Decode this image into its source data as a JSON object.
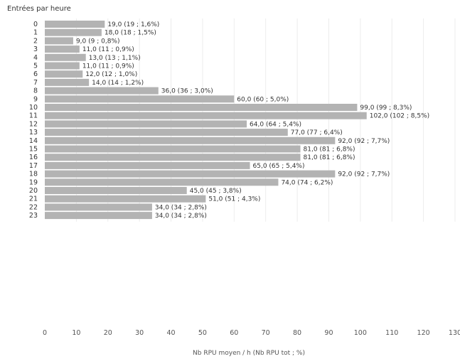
{
  "chart_data": {
    "type": "bar",
    "orientation": "horizontal",
    "title": "Entrées par heure",
    "xlabel": "Nb RPU moyen / h (Nb RPU tot ; %)",
    "ylabel": "",
    "xlim": [
      0,
      130
    ],
    "x_ticks": [
      "0",
      "10",
      "20",
      "30",
      "40",
      "50",
      "60",
      "70",
      "80",
      "90",
      "100",
      "110",
      "120",
      "130"
    ],
    "grid": "vertical",
    "bar_color": "#b3b3b3",
    "categories": [
      "0",
      "1",
      "2",
      "3",
      "4",
      "5",
      "6",
      "7",
      "8",
      "9",
      "10",
      "11",
      "12",
      "13",
      "14",
      "15",
      "16",
      "17",
      "18",
      "19",
      "20",
      "21",
      "22",
      "23"
    ],
    "values": [
      19,
      18,
      9,
      11,
      13,
      11,
      12,
      14,
      36,
      60,
      99,
      102,
      64,
      77,
      92,
      81,
      81,
      65,
      92,
      74,
      45,
      51,
      34,
      34
    ],
    "data_labels": [
      "19,0 (19 ; 1,6%)",
      "18,0 (18 ; 1,5%)",
      "9,0 (9 ; 0,8%)",
      "11,0 (11 ; 0,9%)",
      "13,0 (13 ; 1,1%)",
      "11,0 (11 ; 0,9%)",
      "12,0 (12 ; 1,0%)",
      "14,0 (14 ; 1,2%)",
      "36,0 (36 ; 3,0%)",
      "60,0 (60 ; 5,0%)",
      "99,0 (99 ; 8,3%)",
      "102,0 (102 ; 8,5%)",
      "64,0 (64 ; 5,4%)",
      "77,0 (77 ; 6,4%)",
      "92,0 (92 ; 7,7%)",
      "81,0 (81 ; 6,8%)",
      "81,0 (81 ; 6,8%)",
      "65,0 (65 ; 5,4%)",
      "92,0 (92 ; 7,7%)",
      "74,0 (74 ; 6,2%)",
      "45,0 (45 ; 3,8%)",
      "51,0 (51 ; 4,3%)",
      "34,0 (34 ; 2,8%)",
      "34,0 (34 ; 2,8%)"
    ]
  }
}
